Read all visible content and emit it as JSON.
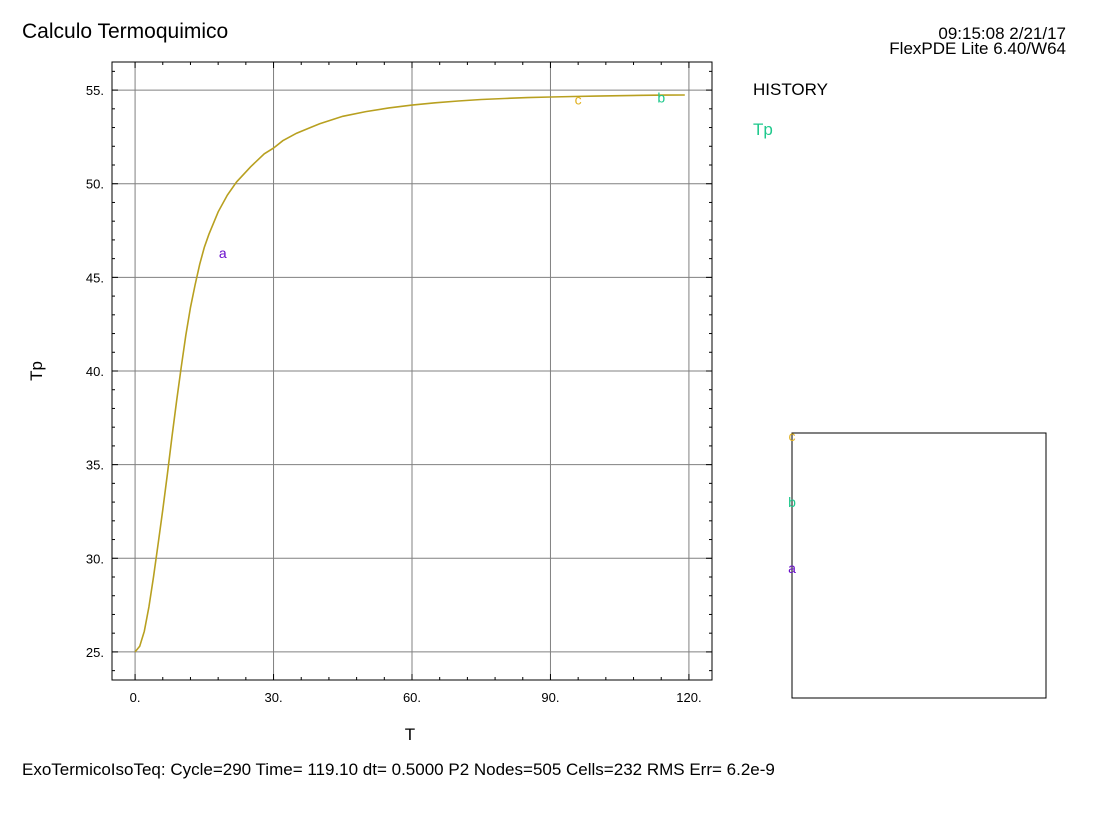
{
  "header": {
    "title": "Calculo Termoquimico",
    "timestamp": "09:15:08 2/21/17",
    "version": "FlexPDE Lite 6.40/W64"
  },
  "legend": {
    "heading": "HISTORY",
    "entry": "Tp",
    "entry_color": "#1ec88c"
  },
  "footer": {
    "status": "ExoTermicoIsoTeq:  Cycle=290  Time= 119.10  dt= 0.5000  P2  Nodes=505 Cells=232 RMS Err= 6.2e-9"
  },
  "chart_data": {
    "type": "line",
    "xlabel": "T",
    "ylabel": "Tp",
    "xlim": [
      -5,
      125
    ],
    "ylim": [
      23.5,
      56.5
    ],
    "xticks": [
      0,
      30,
      60,
      90,
      120
    ],
    "xtick_labels": [
      "0.",
      "30.",
      "60.",
      "90.",
      "120."
    ],
    "yticks": [
      25,
      30,
      35,
      40,
      45,
      50,
      55
    ],
    "ytick_labels": [
      "25.",
      "30.",
      "35.",
      "40.",
      "45.",
      "50.",
      "55."
    ],
    "grid": true,
    "series": [
      {
        "name": "Tp",
        "color": "#b8a020",
        "x": [
          0,
          1,
          2,
          3,
          4,
          5,
          6,
          7,
          8,
          9,
          10,
          11,
          12,
          13,
          14,
          15,
          16,
          18,
          20,
          22,
          25,
          28,
          30,
          32,
          35,
          38,
          40,
          45,
          50,
          55,
          60,
          65,
          70,
          75,
          80,
          85,
          90,
          95,
          100,
          105,
          110,
          115,
          119.1
        ],
        "y": [
          25.0,
          25.3,
          26.1,
          27.4,
          29.0,
          30.8,
          32.6,
          34.5,
          36.5,
          38.4,
          40.2,
          41.9,
          43.4,
          44.6,
          45.7,
          46.6,
          47.3,
          48.5,
          49.4,
          50.1,
          50.9,
          51.6,
          51.9,
          52.3,
          52.7,
          53.0,
          53.2,
          53.6,
          53.85,
          54.05,
          54.2,
          54.32,
          54.42,
          54.5,
          54.55,
          54.6,
          54.63,
          54.66,
          54.68,
          54.7,
          54.72,
          54.73,
          54.74
        ]
      }
    ],
    "curve_markers": [
      {
        "label": "a",
        "x": 19,
        "y": 46.3,
        "color": "#6a0dcc"
      },
      {
        "label": "c",
        "x": 96,
        "y": 54.5,
        "color": "#e0b020"
      },
      {
        "label": "b",
        "x": 114,
        "y": 54.6,
        "color": "#1ec88c"
      }
    ],
    "side_box_labels": [
      {
        "label": "c",
        "color": "#e0b020"
      },
      {
        "label": "b",
        "color": "#1ec88c"
      },
      {
        "label": "a",
        "color": "#6a0dcc"
      }
    ]
  }
}
